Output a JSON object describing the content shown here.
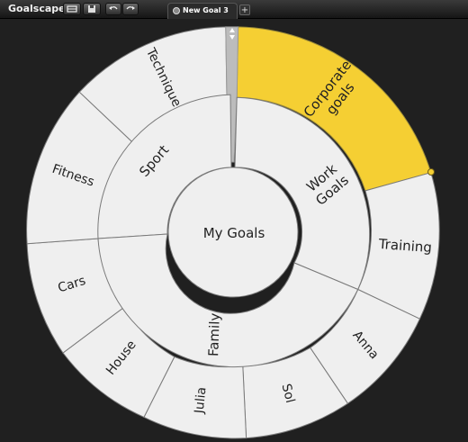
{
  "app": {
    "title": "Goalscape"
  },
  "toolbar": {
    "buttons": [
      {
        "name": "open-button",
        "icon": "folder-icon"
      },
      {
        "name": "save-button",
        "icon": "disk-icon"
      },
      {
        "name": "undo-button",
        "icon": "undo-icon"
      },
      {
        "name": "redo-button",
        "icon": "redo-icon"
      }
    ]
  },
  "tabs": [
    {
      "label": "New Goal 3",
      "active": true
    }
  ],
  "tab_add_label": "+",
  "wheel": {
    "center_label": "My Goals",
    "colors": {
      "segment": "#efefef",
      "highlight": "#f5cf33",
      "outline": "#7a7a7a",
      "handle": "#bcbcbc"
    },
    "inner_ring": [
      {
        "label": "Sport"
      },
      {
        "label": "Work Goals"
      },
      {
        "label": "Family"
      }
    ],
    "outer_ring": [
      {
        "label": "Technique"
      },
      {
        "label": "Corporate goals",
        "highlighted": true
      },
      {
        "label": "Training"
      },
      {
        "label": "Anna"
      },
      {
        "label": "Sol"
      },
      {
        "label": "Julia"
      },
      {
        "label": "House"
      },
      {
        "label": "Cars"
      },
      {
        "label": "Fitness"
      }
    ]
  }
}
